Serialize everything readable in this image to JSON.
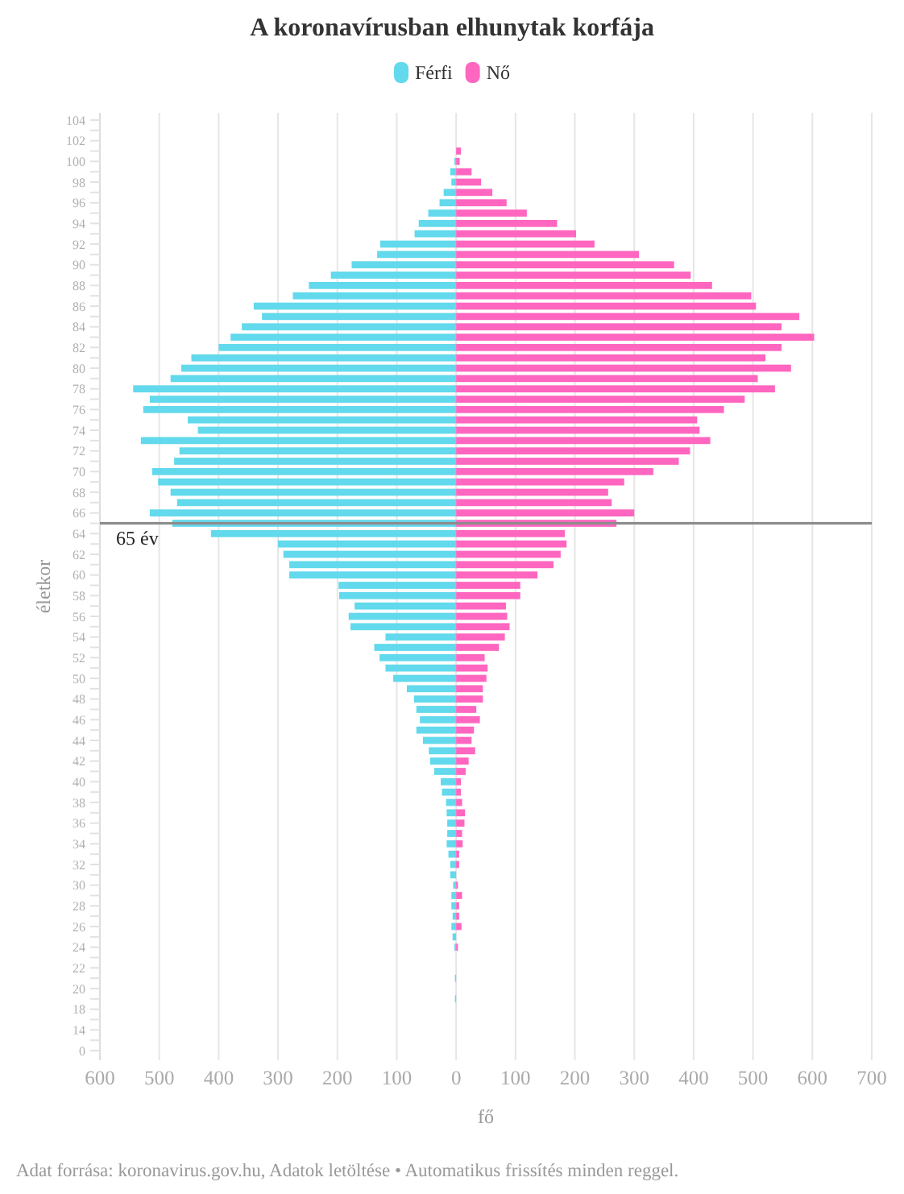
{
  "chart_data": {
    "type": "bar",
    "orientation": "horizontal",
    "stacked": true,
    "title": "A koronavírusban elhunytak korfája",
    "xlabel": "fő",
    "ylabel": "életkor",
    "categories": [
      "104",
      null,
      "102",
      null,
      "100",
      null,
      "98",
      null,
      "96",
      null,
      "94",
      null,
      "92",
      null,
      "90",
      null,
      "88",
      null,
      "86",
      null,
      "84",
      null,
      "82",
      null,
      "80",
      null,
      "78",
      null,
      "76",
      null,
      "74",
      null,
      "72",
      null,
      "70",
      null,
      "68",
      null,
      "66",
      null,
      "64",
      null,
      "62",
      null,
      "60",
      null,
      "58",
      null,
      "56",
      null,
      "54",
      null,
      "52",
      null,
      "50",
      null,
      "48",
      null,
      "46",
      null,
      "44",
      null,
      "42",
      null,
      "40",
      null,
      "38",
      null,
      "36",
      null,
      "34",
      null,
      "32",
      null,
      "30",
      null,
      "28",
      null,
      "26",
      null,
      "24",
      null,
      "22",
      null,
      "20",
      null,
      "18",
      null,
      "14",
      null,
      "0"
    ],
    "series": [
      {
        "name": "Férfi",
        "color": "#62d9ec",
        "values": [
          null,
          null,
          null,
          null,
          -3,
          -10,
          -8,
          -21,
          -28,
          -47,
          -63,
          -70,
          -128,
          -133,
          -176,
          -211,
          -248,
          -275,
          -341,
          -327,
          -361,
          -380,
          -400,
          -446,
          -463,
          -481,
          -544,
          -516,
          -527,
          -452,
          -435,
          -531,
          -466,
          -475,
          -512,
          -502,
          -481,
          -470,
          -516,
          -478,
          -413,
          -300,
          -291,
          -281,
          -281,
          -198,
          -197,
          -171,
          -181,
          -178,
          -119,
          -138,
          -129,
          -119,
          -106,
          -83,
          -71,
          -67,
          -61,
          -67,
          -56,
          -46,
          -44,
          -37,
          -26,
          -24,
          -17,
          -16,
          -15,
          -15,
          -16,
          -13,
          -10,
          -10,
          -5,
          -8,
          -8,
          -6,
          -8,
          -6,
          -3,
          null,
          null,
          -2,
          null,
          -2,
          null,
          null,
          null,
          null,
          null
        ]
      },
      {
        "name": "Nő",
        "color": "#ff66c0",
        "values": [
          null,
          null,
          null,
          8,
          6,
          26,
          42,
          61,
          85,
          119,
          170,
          202,
          233,
          308,
          367,
          395,
          431,
          497,
          505,
          578,
          548,
          603,
          548,
          521,
          564,
          508,
          537,
          486,
          451,
          406,
          410,
          428,
          394,
          375,
          332,
          283,
          256,
          262,
          300,
          270,
          183,
          186,
          176,
          164,
          137,
          108,
          108,
          84,
          86,
          90,
          82,
          72,
          48,
          53,
          51,
          45,
          45,
          34,
          40,
          30,
          26,
          32,
          21,
          16,
          8,
          8,
          10,
          15,
          14,
          10,
          11,
          5,
          5,
          null,
          3,
          10,
          5,
          5,
          9,
          null,
          3,
          null,
          null,
          null,
          null,
          null,
          null,
          null,
          null,
          null,
          null
        ]
      }
    ],
    "xlim": [
      -600,
      700
    ],
    "xticks": [
      {
        "value": -600,
        "label": "600"
      },
      {
        "value": -500,
        "label": "500"
      },
      {
        "value": -400,
        "label": "400"
      },
      {
        "value": -300,
        "label": "300"
      },
      {
        "value": -200,
        "label": "200"
      },
      {
        "value": -100,
        "label": "100"
      },
      0,
      100,
      200,
      300,
      400,
      500,
      600,
      700
    ],
    "grid": "x",
    "legend": "top",
    "annotations": [
      "65 év",
      "Adat forrása: koronavirus.gov.hu, Adatok letöltése • Automatikus frissítés minden reggel."
    ]
  }
}
